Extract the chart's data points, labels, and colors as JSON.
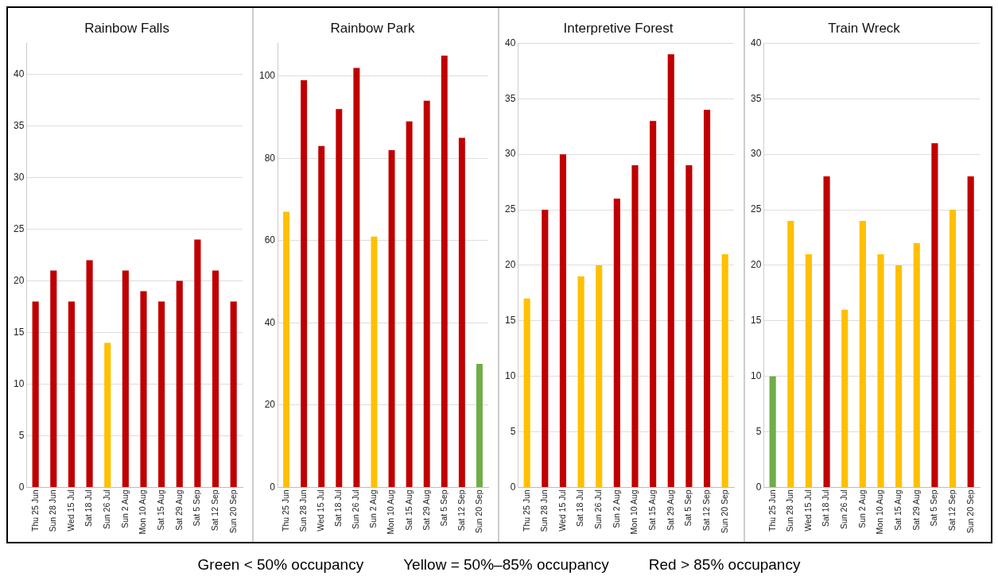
{
  "chart_data": [
    {
      "type": "bar",
      "title": "Rainbow Falls",
      "categories": [
        "Thu 25 Jun",
        "Sun 28 Jun",
        "Wed 15 Jul",
        "Sat 18 Jul",
        "Sun 26 Jul",
        "Sun 2 Aug",
        "Mon 10 Aug",
        "Sat 15 Aug",
        "Sat 29 Aug",
        "Sat 5 Sep",
        "Sat 12 Sep",
        "Sun 20 Sep"
      ],
      "values": [
        18,
        21,
        18,
        22,
        14,
        21,
        19,
        18,
        20,
        24,
        21,
        18
      ],
      "colors": [
        "#c00000",
        "#c00000",
        "#c00000",
        "#c00000",
        "#ffc000",
        "#c00000",
        "#c00000",
        "#c00000",
        "#c00000",
        "#c00000",
        "#c00000",
        "#c00000"
      ],
      "ylim": [
        0,
        43
      ],
      "yticks": [
        0,
        5,
        10,
        15,
        20,
        25,
        30,
        35,
        40
      ],
      "grid": "y",
      "legend": false,
      "annotations": [
        "Green < 50% occupancy",
        "Yellow = 50%–85% occupancy",
        "Red > 85% occupancy"
      ]
    },
    {
      "type": "bar",
      "title": "Rainbow Park",
      "categories": [
        "Thu 25 Jun",
        "Sun 28 Jun",
        "Wed 15 Jul",
        "Sat 18 Jul",
        "Sun 26 Jul",
        "Sun 2 Aug",
        "Mon 10 Aug",
        "Sat 15 Aug",
        "Sat 29 Aug",
        "Sat 5 Sep",
        "Sat 12 Sep",
        "Sun 20 Sep"
      ],
      "values": [
        67,
        99,
        83,
        92,
        102,
        61,
        82,
        89,
        94,
        105,
        85,
        30
      ],
      "colors": [
        "#ffc000",
        "#c00000",
        "#c00000",
        "#c00000",
        "#c00000",
        "#ffc000",
        "#c00000",
        "#c00000",
        "#c00000",
        "#c00000",
        "#c00000",
        "#70ad47"
      ],
      "ylim": [
        0,
        108
      ],
      "yticks": [
        0,
        20,
        40,
        60,
        80,
        100
      ],
      "grid": "y",
      "legend": false
    },
    {
      "type": "bar",
      "title": "Interpretive Forest",
      "categories": [
        "Thu 25 Jun",
        "Sun 28 Jun",
        "Wed 15 Jul",
        "Sat 18 Jul",
        "Sun 26 Jul",
        "Sun 2 Aug",
        "Mon 10 Aug",
        "Sat 15 Aug",
        "Sat 29 Aug",
        "Sat 5 Sep",
        "Sat 12 Sep",
        "Sun 20 Sep"
      ],
      "values": [
        17,
        25,
        30,
        19,
        20,
        26,
        29,
        33,
        39,
        29,
        34,
        21
      ],
      "colors": [
        "#ffc000",
        "#c00000",
        "#c00000",
        "#ffc000",
        "#ffc000",
        "#c00000",
        "#c00000",
        "#c00000",
        "#c00000",
        "#c00000",
        "#c00000",
        "#ffc000"
      ],
      "ylim": [
        0,
        40
      ],
      "yticks": [
        0,
        5,
        10,
        15,
        20,
        25,
        30,
        35,
        40
      ],
      "grid": "y",
      "legend": false
    },
    {
      "type": "bar",
      "title": "Train Wreck",
      "categories": [
        "Thu 25 Jun",
        "Sun 28 Jun",
        "Wed 15 Jul",
        "Sat 18 Jul",
        "Sun 26 Jul",
        "Sun 2 Aug",
        "Mon 10 Aug",
        "Sat 15 Aug",
        "Sat 29 Aug",
        "Sat 5 Sep",
        "Sat 12 Sep",
        "Sun 20 Sep"
      ],
      "values": [
        10,
        24,
        21,
        28,
        16,
        24,
        21,
        20,
        22,
        31,
        25,
        28
      ],
      "colors": [
        "#70ad47",
        "#ffc000",
        "#ffc000",
        "#c00000",
        "#ffc000",
        "#ffc000",
        "#ffc000",
        "#ffc000",
        "#ffc000",
        "#c00000",
        "#ffc000",
        "#c00000"
      ],
      "ylim": [
        0,
        40
      ],
      "yticks": [
        0,
        5,
        10,
        15,
        20,
        25,
        30,
        35,
        40
      ],
      "grid": "y",
      "legend": false
    }
  ]
}
